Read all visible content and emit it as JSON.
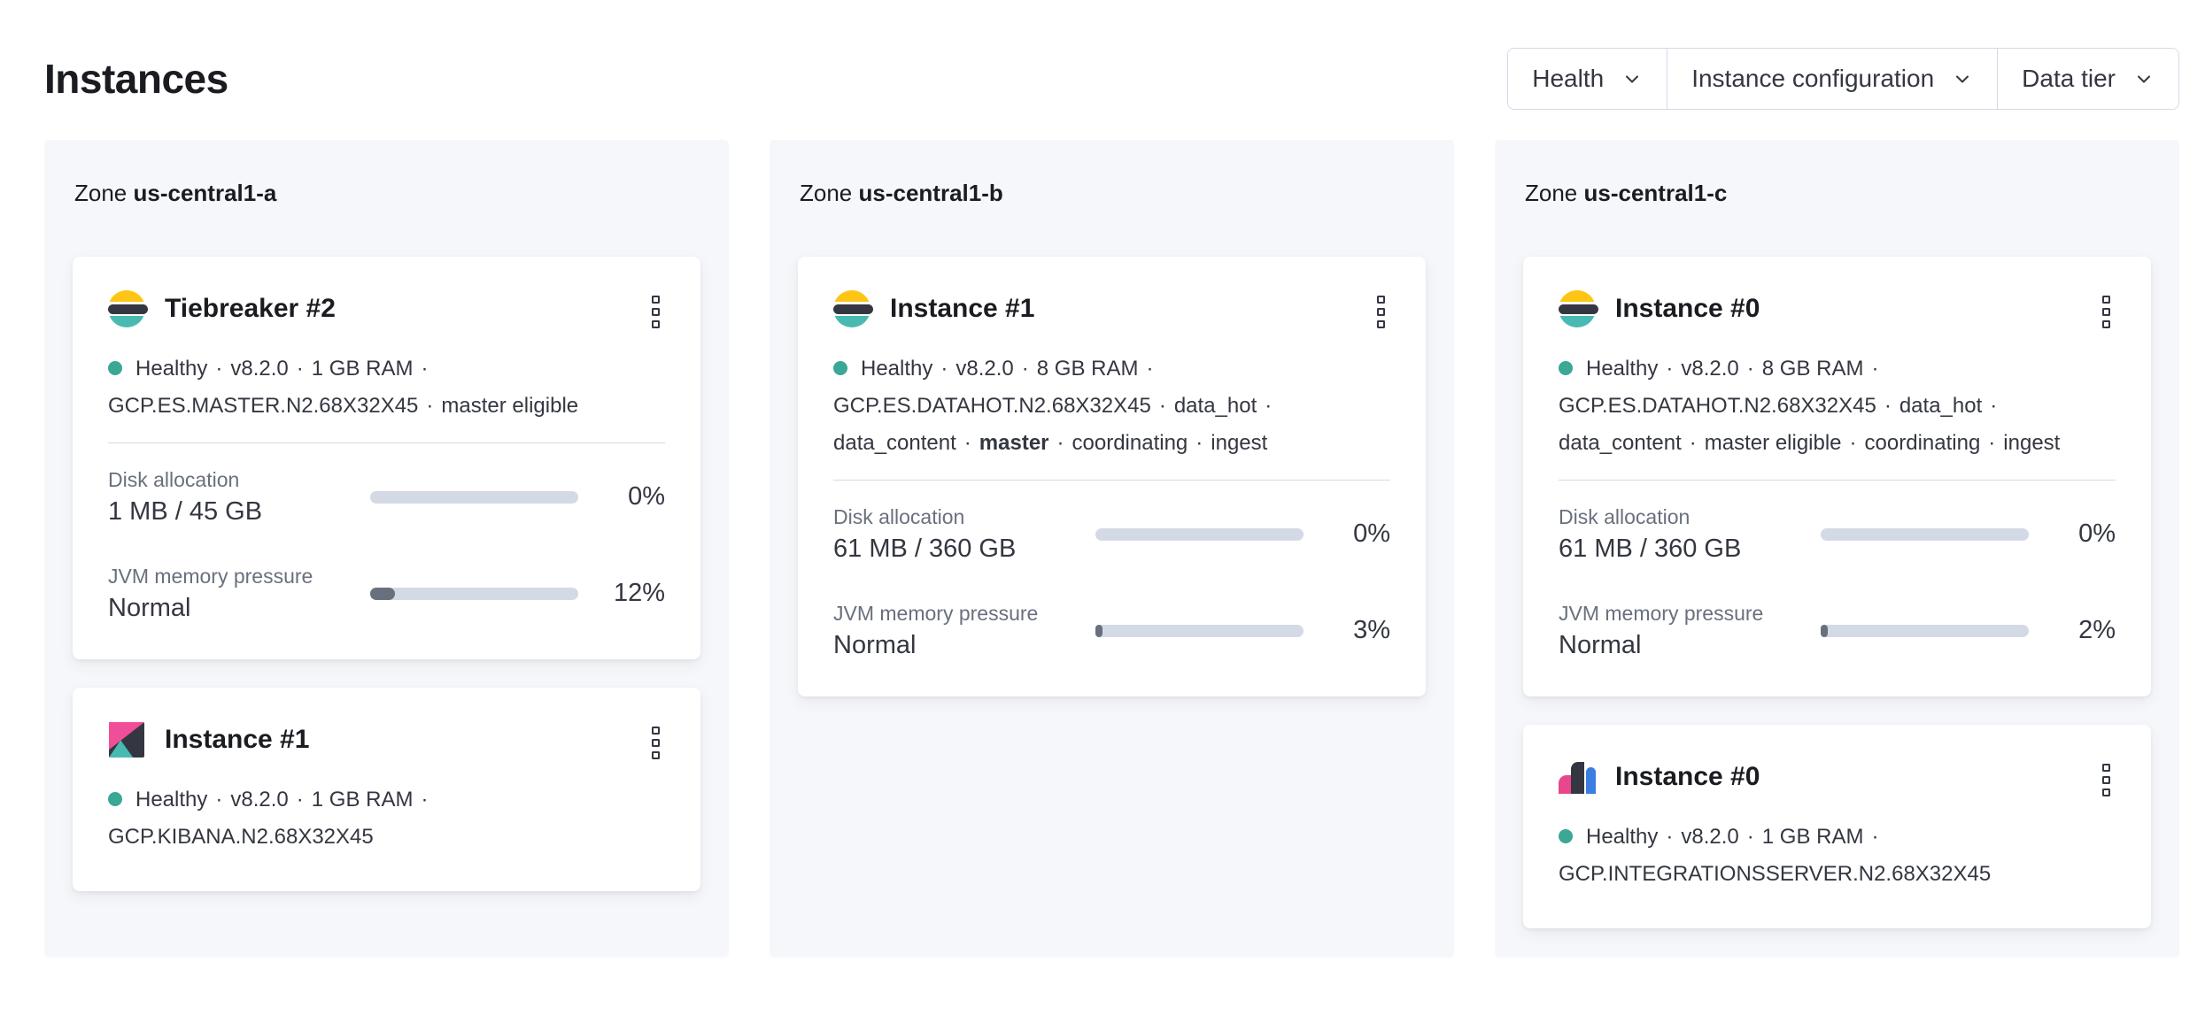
{
  "page": {
    "title": "Instances",
    "zone_word": "Zone"
  },
  "separator": "·",
  "colors": {
    "page_bg": "#ffffff",
    "zone_bg": "#f5f7fa",
    "card_bg": "#ffffff",
    "title_text": "#1a1c21",
    "body_text": "#343741",
    "muted_text": "#69707d",
    "divider": "#d3dae6",
    "border": "#d3dae6",
    "meter_track": "#d3dae6",
    "meter_fill": "#69707d",
    "health_ok": "#3ba795",
    "es_yellow": "#fec514",
    "es_dark": "#343741",
    "es_teal": "#49bab1",
    "kibana_pink": "#f04e98",
    "agent_blue": "#3c7de2",
    "agent_pink": "#e8478b"
  },
  "filters": [
    {
      "label": "Health"
    },
    {
      "label": "Instance configuration"
    },
    {
      "label": "Data tier"
    }
  ],
  "zones": [
    {
      "name": "us-central1-a",
      "instances": [
        {
          "icon": "elasticsearch",
          "title": "Tiebreaker #2",
          "health": "Healthy",
          "meta_lines": [
            {
              "segments": [
                {
                  "text": "Healthy"
                },
                {
                  "text": "v8.2.0"
                },
                {
                  "text": "1 GB RAM"
                }
              ],
              "trailing_separator": true
            },
            {
              "segments": [
                {
                  "text": "GCP.ES.MASTER.N2.68X32X45"
                },
                {
                  "text": "master eligible"
                }
              ],
              "trailing_separator": false
            }
          ],
          "meters": [
            {
              "label": "Disk allocation",
              "value": "1 MB / 45 GB",
              "percent": 0,
              "percent_label": "0%"
            },
            {
              "label": "JVM memory pressure",
              "value": "Normal",
              "percent": 12,
              "percent_label": "12%"
            }
          ]
        },
        {
          "icon": "kibana",
          "title": "Instance #1",
          "health": "Healthy",
          "meta_lines": [
            {
              "segments": [
                {
                  "text": "Healthy"
                },
                {
                  "text": "v8.2.0"
                },
                {
                  "text": "1 GB RAM"
                }
              ],
              "trailing_separator": true
            },
            {
              "segments": [
                {
                  "text": "GCP.KIBANA.N2.68X32X45"
                }
              ],
              "trailing_separator": false
            }
          ],
          "meters": []
        }
      ]
    },
    {
      "name": "us-central1-b",
      "instances": [
        {
          "icon": "elasticsearch",
          "title": "Instance #1",
          "health": "Healthy",
          "meta_lines": [
            {
              "segments": [
                {
                  "text": "Healthy"
                },
                {
                  "text": "v8.2.0"
                },
                {
                  "text": "8 GB RAM"
                }
              ],
              "trailing_separator": true
            },
            {
              "segments": [
                {
                  "text": "GCP.ES.DATAHOT.N2.68X32X45"
                },
                {
                  "text": "data_hot"
                }
              ],
              "trailing_separator": true
            },
            {
              "segments": [
                {
                  "text": "data_content"
                },
                {
                  "text": "master",
                  "bold": true
                },
                {
                  "text": "coordinating"
                },
                {
                  "text": "ingest"
                }
              ],
              "trailing_separator": false
            }
          ],
          "meters": [
            {
              "label": "Disk allocation",
              "value": "61 MB / 360 GB",
              "percent": 0,
              "percent_label": "0%"
            },
            {
              "label": "JVM memory pressure",
              "value": "Normal",
              "percent": 3,
              "percent_label": "3%"
            }
          ]
        }
      ]
    },
    {
      "name": "us-central1-c",
      "instances": [
        {
          "icon": "elasticsearch",
          "title": "Instance #0",
          "health": "Healthy",
          "meta_lines": [
            {
              "segments": [
                {
                  "text": "Healthy"
                },
                {
                  "text": "v8.2.0"
                },
                {
                  "text": "8 GB RAM"
                }
              ],
              "trailing_separator": true
            },
            {
              "segments": [
                {
                  "text": "GCP.ES.DATAHOT.N2.68X32X45"
                },
                {
                  "text": "data_hot"
                }
              ],
              "trailing_separator": true
            },
            {
              "segments": [
                {
                  "text": "data_content"
                },
                {
                  "text": "master eligible"
                },
                {
                  "text": "coordinating"
                },
                {
                  "text": "ingest"
                }
              ],
              "trailing_separator": false
            }
          ],
          "meters": [
            {
              "label": "Disk allocation",
              "value": "61 MB / 360 GB",
              "percent": 0,
              "percent_label": "0%"
            },
            {
              "label": "JVM memory pressure",
              "value": "Normal",
              "percent": 2,
              "percent_label": "2%"
            }
          ]
        },
        {
          "icon": "integrations-server",
          "title": "Instance #0",
          "health": "Healthy",
          "meta_lines": [
            {
              "segments": [
                {
                  "text": "Healthy"
                },
                {
                  "text": "v8.2.0"
                },
                {
                  "text": "1 GB RAM"
                }
              ],
              "trailing_separator": true
            },
            {
              "segments": [
                {
                  "text": "GCP.INTEGRATIONSSERVER.N2.68X32X45"
                }
              ],
              "trailing_separator": false
            }
          ],
          "meters": []
        }
      ]
    }
  ]
}
